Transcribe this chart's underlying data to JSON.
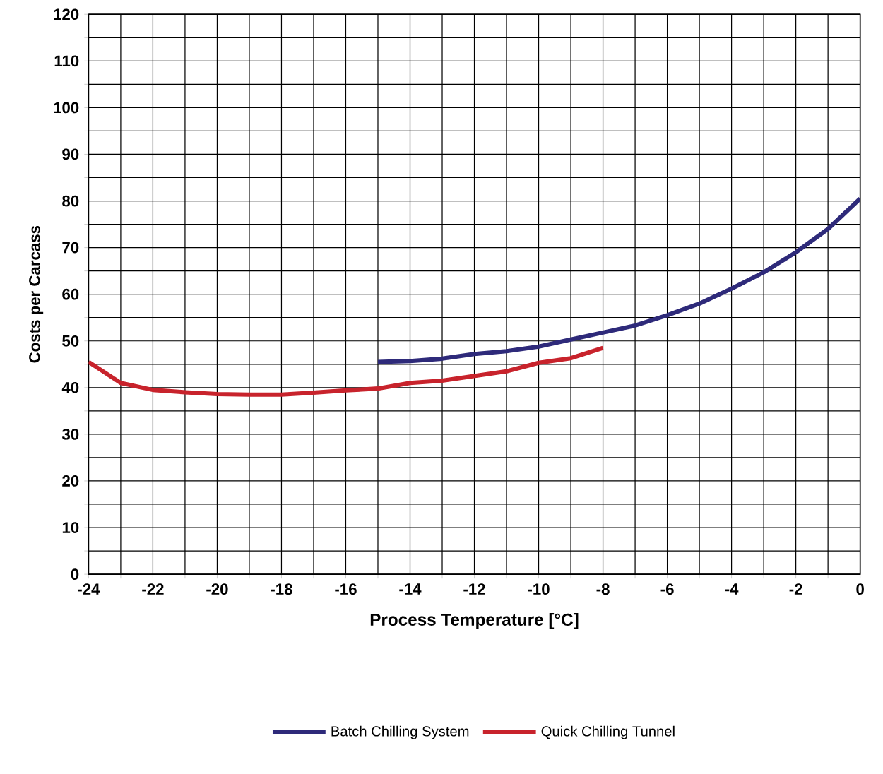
{
  "chart_data": {
    "type": "line",
    "xlabel": "Process Temperature [°C]",
    "ylabel": "Costs per Carcass",
    "xlim": [
      -24,
      0
    ],
    "ylim": [
      0,
      120
    ],
    "xticks": [
      -24,
      {
        "value": -23,
        "label": null
      },
      -22,
      {
        "value": -21,
        "label": null
      },
      -20,
      {
        "value": -19,
        "label": null
      },
      -18,
      {
        "value": -17,
        "label": null
      },
      -16,
      {
        "value": -15,
        "label": null
      },
      -14,
      {
        "value": -13,
        "label": null
      },
      -12,
      {
        "value": -11,
        "label": null
      },
      -10,
      {
        "value": -9,
        "label": null
      },
      -8,
      {
        "value": -7,
        "label": null
      },
      -6,
      {
        "value": -5,
        "label": null
      },
      -4,
      {
        "value": -3,
        "label": null
      },
      -2,
      {
        "value": -1,
        "label": null
      },
      0
    ],
    "yticks": [
      0,
      {
        "value": 5,
        "label": null
      },
      10,
      {
        "value": 15,
        "label": null
      },
      20,
      {
        "value": 25,
        "label": null
      },
      30,
      {
        "value": 35,
        "label": null
      },
      40,
      {
        "value": 45,
        "label": null
      },
      50,
      {
        "value": 55,
        "label": null
      },
      60,
      {
        "value": 65,
        "label": null
      },
      70,
      {
        "value": 75,
        "label": null
      },
      80,
      {
        "value": 85,
        "label": null
      },
      90,
      {
        "value": 95,
        "label": null
      },
      100,
      {
        "value": 105,
        "label": null
      },
      110,
      {
        "value": 115,
        "label": null
      },
      120
    ],
    "grid": true,
    "legend": "bottom",
    "marker": "none",
    "line_style": "solid",
    "series": [
      {
        "name": "Batch Chilling System",
        "color": "#2e2a7a",
        "x": [
          -15,
          -14,
          -13,
          -12,
          -11,
          -10,
          -9,
          -8,
          -7,
          -6,
          -5,
          -4,
          -3,
          -2,
          -1,
          0
        ],
        "values": [
          45.5,
          45.7,
          46.2,
          47.2,
          47.8,
          48.8,
          50.3,
          51.8,
          53.3,
          55.5,
          58,
          61.2,
          64.7,
          69,
          74,
          80.5
        ]
      },
      {
        "name": "Quick Chilling Tunnel",
        "color": "#c8232c",
        "x": [
          -24,
          -23,
          -22,
          -21,
          -20,
          -19,
          -18,
          -17,
          -16,
          -15,
          -14,
          -13,
          -12,
          -11,
          -10,
          -9,
          -8
        ],
        "values": [
          45.5,
          41,
          39.5,
          39,
          38.6,
          38.5,
          38.5,
          38.9,
          39.4,
          39.8,
          41,
          41.5,
          42.5,
          43.5,
          45.3,
          46.3,
          48.5
        ]
      }
    ]
  }
}
